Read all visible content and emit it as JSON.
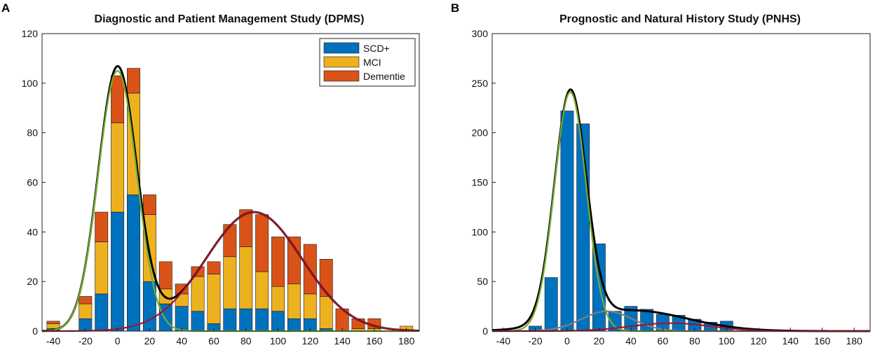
{
  "chart_data": [
    {
      "panel": "A",
      "type": "bar",
      "stacked": true,
      "title": "Diagnostic and Patient Management Study (DPMS)",
      "xlabel": "",
      "ylabel": "",
      "xlim": [
        -47,
        188
      ],
      "ylim": [
        0,
        120
      ],
      "xticks": [
        -40,
        -20,
        0,
        20,
        40,
        60,
        80,
        100,
        120,
        140,
        160,
        180
      ],
      "yticks": [
        0,
        20,
        40,
        60,
        80,
        100,
        120
      ],
      "bin_width": 10,
      "x": [
        -40,
        -20,
        -10,
        0,
        10,
        20,
        30,
        40,
        50,
        60,
        70,
        80,
        90,
        100,
        110,
        120,
        130,
        140,
        150,
        160,
        170,
        180
      ],
      "series": [
        {
          "name": "SCD+",
          "color": "#0072BD",
          "values": [
            1,
            5,
            15,
            48,
            55,
            20,
            11,
            10,
            8,
            3,
            9,
            9,
            9,
            8,
            5,
            5,
            1,
            0,
            0,
            0,
            0,
            0
          ]
        },
        {
          "name": "MCI",
          "color": "#EDB120",
          "values": [
            2,
            6,
            21,
            36,
            41,
            27,
            6,
            5,
            14,
            20,
            21,
            25,
            15,
            10,
            14,
            10,
            13,
            0,
            1,
            1,
            0,
            2
          ]
        },
        {
          "name": "Dementie",
          "color": "#D95319",
          "values": [
            1,
            3,
            12,
            19,
            10,
            8,
            11,
            4,
            4,
            5,
            13,
            15,
            23,
            20,
            19,
            20,
            15,
            9,
            4,
            4,
            0,
            0
          ]
        }
      ],
      "totals": [
        4,
        14,
        48,
        103,
        106,
        55,
        28,
        19,
        26,
        28,
        43,
        49,
        47,
        38,
        38,
        35,
        29,
        9,
        5,
        5,
        0,
        2
      ],
      "curves": [
        {
          "name": "mixture fit",
          "color": "#000000",
          "components": [
            [
              1.0,
              106,
              12
            ],
            [
              1.0,
              48,
              30
            ]
          ],
          "center_offsets": [
            0,
            85
          ]
        },
        {
          "name": "component 1",
          "color": "#77AC30",
          "components": [
            [
              1.0,
              105,
              12
            ]
          ],
          "center_offsets": [
            0
          ]
        },
        {
          "name": "component 2",
          "color": "#A2142F",
          "components": [
            [
              1.0,
              48,
              30
            ]
          ],
          "center_offsets": [
            85
          ]
        }
      ],
      "legend": {
        "position": "top-right",
        "entries": [
          "SCD+",
          "MCI",
          "Dementie"
        ]
      }
    },
    {
      "panel": "B",
      "type": "bar",
      "stacked": false,
      "title": "Prognostic and Natural History Study (PNHS)",
      "xlabel": "",
      "ylabel": "",
      "xlim": [
        -47,
        190
      ],
      "ylim": [
        0,
        300
      ],
      "xticks": [
        -40,
        -20,
        0,
        20,
        40,
        60,
        80,
        100,
        120,
        140,
        160,
        180
      ],
      "yticks": [
        0,
        50,
        100,
        150,
        200,
        250,
        300
      ],
      "bin_width": 10,
      "x": [
        -20,
        -10,
        0,
        10,
        20,
        30,
        40,
        50,
        60,
        70,
        80,
        90,
        100
      ],
      "series": [
        {
          "name": "SCD+",
          "color": "#0072BD",
          "values": [
            5,
            54,
            222,
            209,
            88,
            20,
            25,
            22,
            17,
            16,
            12,
            9,
            10
          ]
        }
      ],
      "curves": [
        {
          "name": "mixture fit",
          "color": "#000000",
          "components": [
            [
              1.0,
              232,
              10
            ],
            [
              1.0,
              21,
              35
            ]
          ],
          "center_offsets": [
            2,
            40
          ]
        },
        {
          "name": "component 1",
          "color": "#77AC30",
          "components": [
            [
              1.0,
              241,
              10
            ]
          ],
          "center_offsets": [
            2
          ]
        },
        {
          "name": "component 2",
          "color": "#7E7E7E",
          "components": [
            [
              1.0,
              20,
              16
            ]
          ],
          "center_offsets": [
            25
          ]
        },
        {
          "name": "component 3",
          "color": "#A2142F",
          "components": [
            [
              1.0,
              8,
              25
            ]
          ],
          "center_offsets": [
            65
          ]
        }
      ]
    }
  ]
}
